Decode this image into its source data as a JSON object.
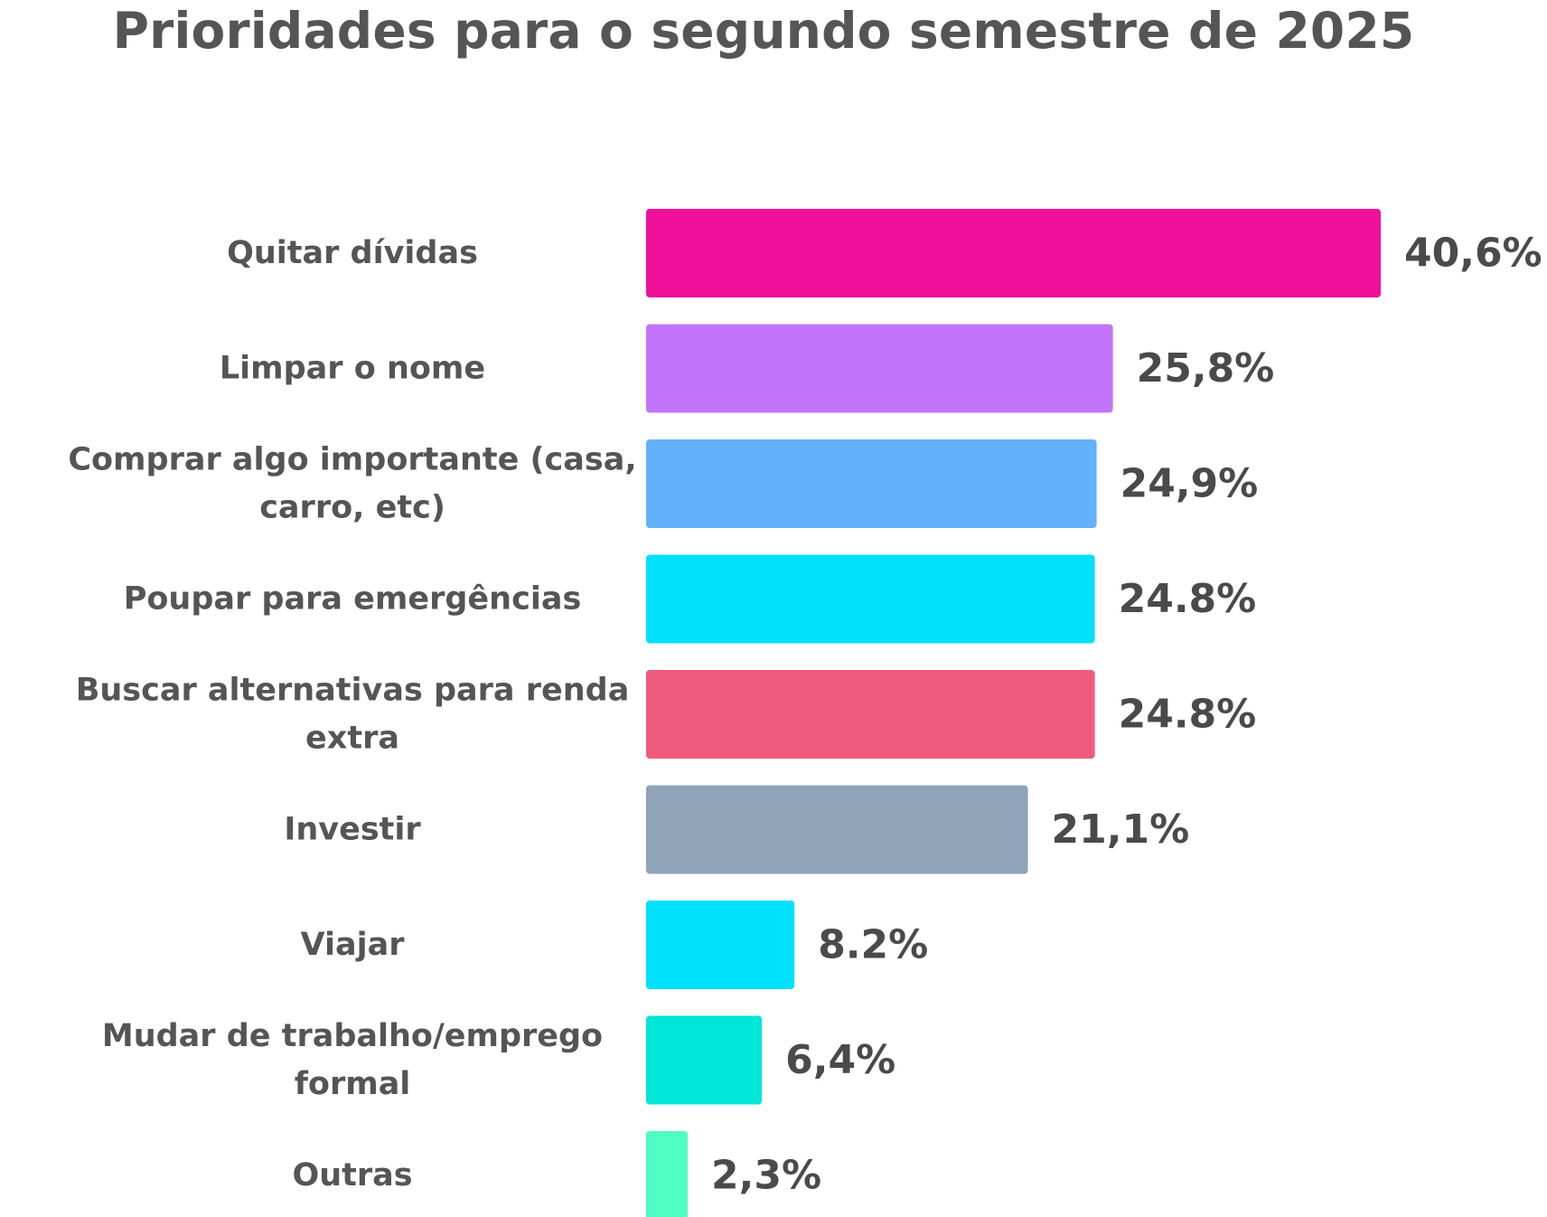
{
  "chart_data": {
    "type": "bar",
    "orientation": "horizontal",
    "title": "Prioridades para o segundo semestre de 2025",
    "xlabel": "",
    "ylabel": "",
    "grid": false,
    "xlim": [
      0,
      40.6
    ],
    "categories": [
      "Quitar dívidas",
      "Limpar o nome",
      "Comprar algo importante (casa, carro, etc)",
      "Poupar para emergências",
      "Buscar alternativas para renda extra",
      "Investir",
      "Viajar",
      "Mudar de trabalho/emprego formal",
      "Outras"
    ],
    "category_lines": [
      [
        "Quitar dívidas"
      ],
      [
        "Limpar o nome"
      ],
      [
        "Comprar algo importante (casa,",
        "carro, etc)"
      ],
      [
        "Poupar para emergências"
      ],
      [
        "Buscar alternativas para renda",
        "extra"
      ],
      [
        "Investir"
      ],
      [
        "Viajar"
      ],
      [
        "Mudar de trabalho/emprego",
        "formal"
      ],
      [
        "Outras"
      ]
    ],
    "values": [
      40.6,
      25.8,
      24.9,
      24.8,
      24.8,
      21.1,
      8.2,
      6.4,
      2.3
    ],
    "data_labels": [
      "40,6%",
      "25,8%",
      "24,9%",
      "24.8%",
      "24.8%",
      "21,1%",
      "8.2%",
      "6,4%",
      "2,3%"
    ],
    "colors": [
      "#f0109a",
      "#c275fb",
      "#63b1fb",
      "#00e0fb",
      "#ef5a7c",
      "#8ea2b8",
      "#00e1fb",
      "#00e6d7",
      "#4ffcc2"
    ]
  }
}
